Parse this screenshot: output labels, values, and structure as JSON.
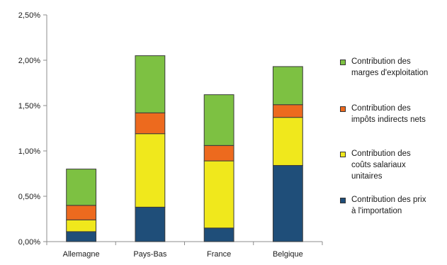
{
  "chart_data": {
    "type": "bar",
    "stacked": true,
    "categories": [
      "Allemagne",
      "Pays-Bas",
      "France",
      "Belgique"
    ],
    "y_ticks": [
      "0,00%",
      "0,50%",
      "1,00%",
      "1,50%",
      "2,00%",
      "2,50%"
    ],
    "ylim": [
      0,
      2.5
    ],
    "y_unit": "%",
    "grid": false,
    "legend_position": "right",
    "series": [
      {
        "name": "Contribution des prix\nà l'importation",
        "color": "#1f4e79",
        "values": [
          0.11,
          0.38,
          0.15,
          0.84
        ]
      },
      {
        "name": "Contribution des\ncoûts salariaux\nunitaires",
        "color": "#f0e81c",
        "values": [
          0.13,
          0.81,
          0.74,
          0.53
        ]
      },
      {
        "name": "Contribution des\nimpôts indirects nets",
        "color": "#ed6a1e",
        "values": [
          0.16,
          0.23,
          0.17,
          0.14
        ]
      },
      {
        "name": "Contribution des\nmarges d'exploitation",
        "color": "#7dc142",
        "values": [
          0.4,
          0.63,
          0.56,
          0.42
        ]
      }
    ],
    "legend_order": [
      3,
      2,
      1,
      0
    ]
  }
}
